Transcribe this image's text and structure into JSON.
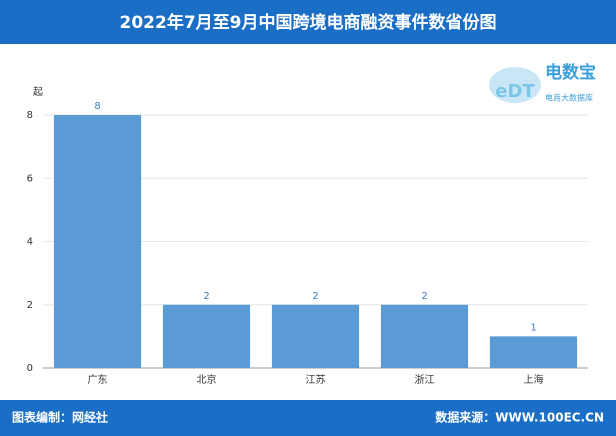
{
  "chart_data": {
    "type": "bar",
    "title": "2022年7月至9月中国跨境电商融资事件数省份图",
    "y_unit": "起",
    "categories": [
      "广东",
      "北京",
      "江苏",
      "浙江",
      "上海"
    ],
    "values": [
      8,
      2,
      2,
      2,
      1
    ],
    "color": "#5b9bd5",
    "ylim": [
      0,
      8
    ],
    "yticks": [
      0,
      2,
      4,
      6,
      8
    ],
    "grid": true
  },
  "logo": {
    "mark": "eDT",
    "name": "电数宝",
    "subtitle": "电商大数据库"
  },
  "footer": {
    "left": "图表编制：网经社",
    "right": "数据来源：WWW.100EC.CN"
  }
}
